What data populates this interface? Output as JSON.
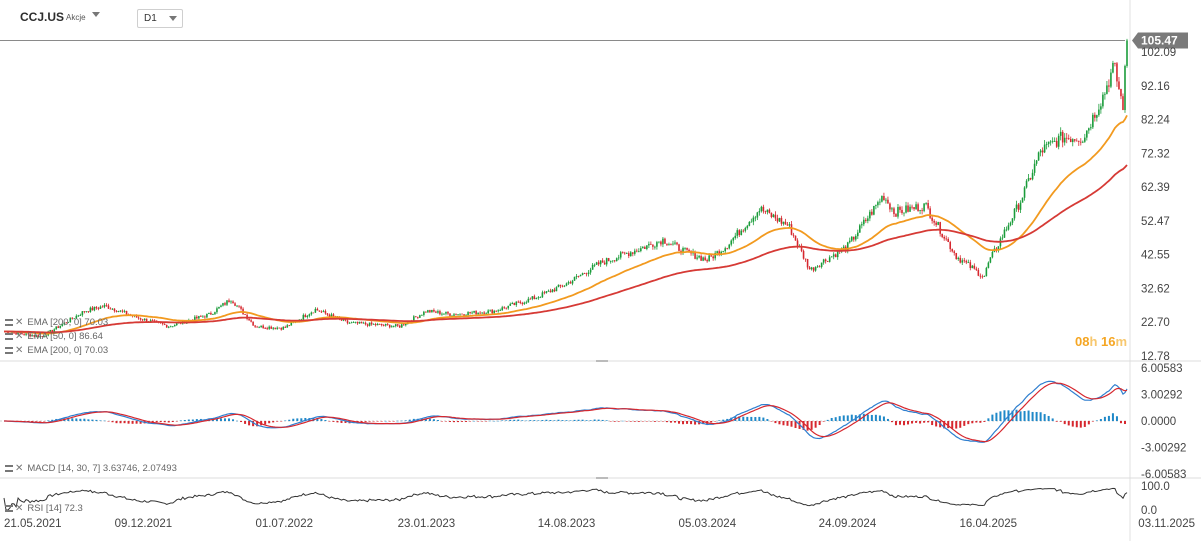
{
  "header": {
    "symbol": "CCJ.US",
    "symbol_type": "Akcje",
    "timeframe": "D1"
  },
  "indicators": {
    "ema200": "EMA [200, 0] 70.03",
    "ema50": "EMA [50, 0] 86.64",
    "ema200b": "EMA [200, 0] 70.03",
    "macd": "MACD [14, 30, 7] 3.63746,  2.07493",
    "rsi": "RSI [14] 72.3"
  },
  "countdown": {
    "hours": "08",
    "h": "h",
    "minutes": "16",
    "m": "m"
  },
  "colors": {
    "up": "#1a9c3a",
    "down": "#d6272e",
    "ema50": "#f29a1f",
    "ema200": "#d63a35",
    "macd_line": "#2f7fcf",
    "signal_line": "#d6272e",
    "hist_pos": "#1e88c8",
    "hist_neg": "#d6272e",
    "rsi": "#333333",
    "price_tag": "#7a7a7a"
  },
  "chart_data": [
    {
      "type": "candlestick",
      "x_labels": [
        "21.05.2021",
        "09.12.2021",
        "01.07.2022",
        "23.01.2023",
        "14.08.2023",
        "05.03.2024",
        "24.09.2024",
        "16.04.2025",
        "03.11.2025"
      ],
      "x_range": [
        "21.05.2021",
        "03.11.2025"
      ],
      "y_ticks": [
        12.78,
        22.7,
        32.62,
        42.55,
        52.47,
        62.39,
        72.32,
        82.24,
        92.16,
        102.09
      ],
      "ylim": [
        12.78,
        105.47
      ],
      "last_price": 105.47,
      "grid": false,
      "series": [
        {
          "name": "price",
          "keypoints": [
            [
              "21.05.2021",
              20.0
            ],
            [
              "15.07.2021",
              18.5
            ],
            [
              "15.09.2021",
              26.0
            ],
            [
              "15.10.2021",
              27.5
            ],
            [
              "01.12.2021",
              24.0
            ],
            [
              "15.01.2022",
              21.5
            ],
            [
              "15.03.2022",
              25.0
            ],
            [
              "15.04.2022",
              29.5
            ],
            [
              "20.05.2022",
              21.5
            ],
            [
              "01.07.2022",
              21.0
            ],
            [
              "15.08.2022",
              26.5
            ],
            [
              "01.10.2022",
              22.5
            ],
            [
              "15.12.2022",
              21.5
            ],
            [
              "23.01.2023",
              26.0
            ],
            [
              "01.03.2023",
              25.0
            ],
            [
              "01.05.2023",
              26.0
            ],
            [
              "01.07.2023",
              30.0
            ],
            [
              "14.08.2023",
              34.0
            ],
            [
              "01.10.2023",
              40.0
            ],
            [
              "01.12.2023",
              44.5
            ],
            [
              "01.01.2024",
              47.0
            ],
            [
              "01.02.2024",
              43.5
            ],
            [
              "05.03.2024",
              41.0
            ],
            [
              "01.04.2024",
              45.0
            ],
            [
              "20.05.2024",
              56.0
            ],
            [
              "01.07.2024",
              51.0
            ],
            [
              "01.08.2024",
              38.0
            ],
            [
              "15.08.2024",
              40.0
            ],
            [
              "24.09.2024",
              45.0
            ],
            [
              "15.11.2024",
              60.0
            ],
            [
              "01.12.2024",
              55.0
            ],
            [
              "15.01.2025",
              57.0
            ],
            [
              "01.03.2025",
              42.0
            ],
            [
              "10.04.2025",
              36.0
            ],
            [
              "16.04.2025",
              40.0
            ],
            [
              "01.06.2025",
              58.0
            ],
            [
              "01.07.2025",
              73.0
            ],
            [
              "01.08.2025",
              77.0
            ],
            [
              "01.09.2025",
              77.0
            ],
            [
              "01.10.2025",
              90.0
            ],
            [
              "15.10.2025",
              98.0
            ],
            [
              "28.10.2025",
              86.0
            ],
            [
              "03.11.2025",
              105.47
            ]
          ]
        },
        {
          "name": "EMA [50, 0]",
          "value": 86.64
        },
        {
          "name": "EMA [200, 0]",
          "value": 70.03
        }
      ]
    },
    {
      "type": "bar",
      "name": "MACD [14, 30, 7]",
      "y_ticks": [
        6.00583,
        3.00292,
        0.0,
        -3.00292,
        -6.00583
      ],
      "ylim": [
        -6.00583,
        6.00583
      ],
      "macd": 3.63746,
      "signal": 2.07493
    },
    {
      "type": "line",
      "name": "RSI [14]",
      "y_ticks": [
        100.0,
        0.0
      ],
      "ylim": [
        0,
        100
      ],
      "value": 72.3
    }
  ]
}
